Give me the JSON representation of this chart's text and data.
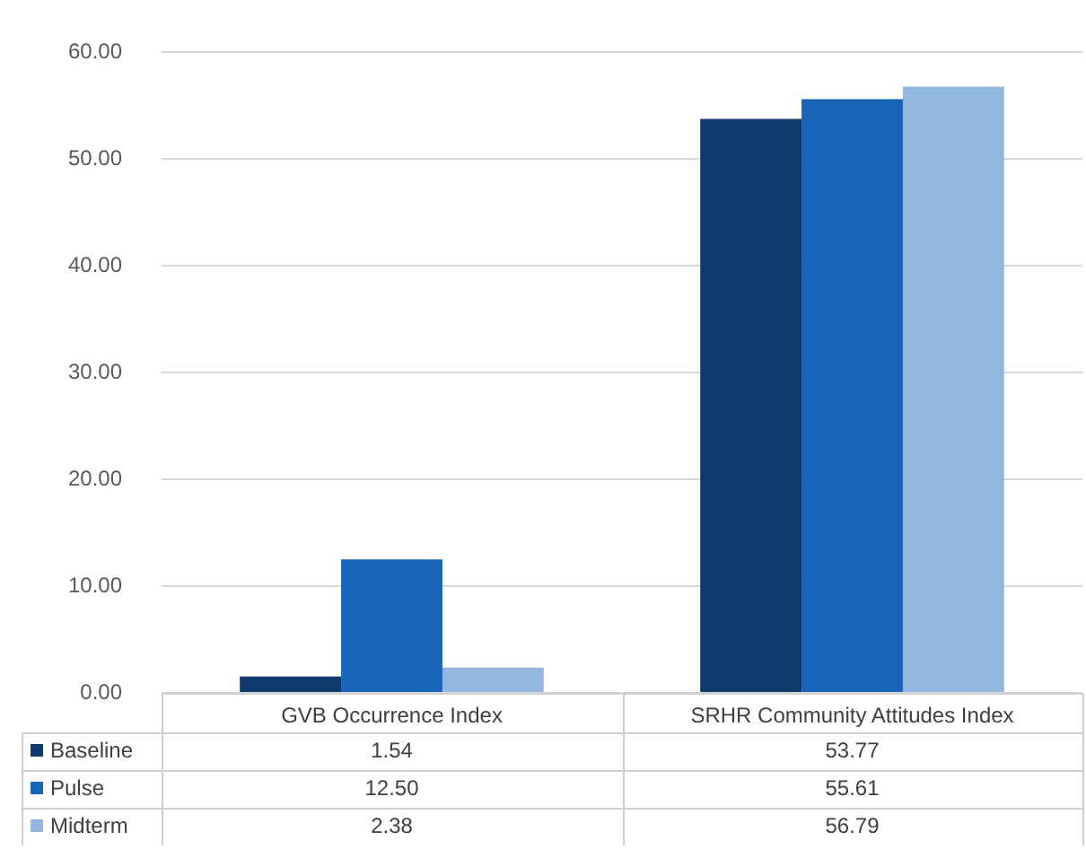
{
  "chart_data": {
    "type": "bar",
    "categories": [
      "GVB Occurrence Index",
      "SRHR Community Attitudes Index"
    ],
    "series": [
      {
        "name": "Baseline",
        "color": "#0f3a6b",
        "values": [
          1.54,
          53.77
        ],
        "value_labels": [
          "1.54",
          "53.77"
        ]
      },
      {
        "name": "Pulse",
        "color": "#1864b8",
        "values": [
          12.5,
          55.61
        ],
        "value_labels": [
          "12.50",
          "55.61"
        ]
      },
      {
        "name": "Midterm",
        "color": "#92b8e2",
        "values": [
          2.38,
          56.79
        ],
        "value_labels": [
          "2.38",
          "56.79"
        ]
      }
    ],
    "ylim": [
      0,
      60
    ],
    "yticks": [
      {
        "value": 0,
        "label": "0.00"
      },
      {
        "value": 10,
        "label": "10.00"
      },
      {
        "value": 20,
        "label": "20.00"
      },
      {
        "value": 30,
        "label": "30.00"
      },
      {
        "value": 40,
        "label": "40.00"
      },
      {
        "value": 50,
        "label": "50.00"
      },
      {
        "value": 60,
        "label": "60.00"
      }
    ],
    "grid": "y",
    "legend": "bottom"
  }
}
